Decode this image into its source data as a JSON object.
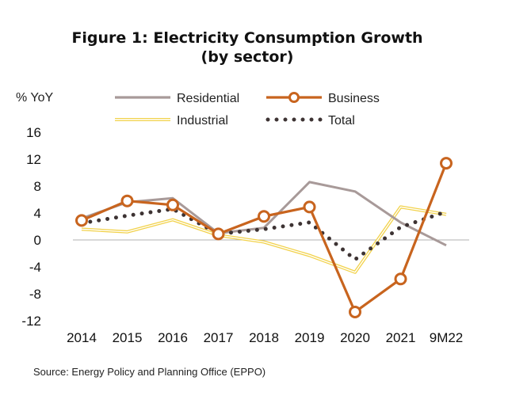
{
  "chart_data": {
    "type": "line",
    "title": "Figure 1: Electricity Consumption Growth",
    "subtitle": "(by sector)",
    "ylabel": "% YoY",
    "xlabel": "",
    "categories": [
      "2014",
      "2015",
      "2016",
      "2017",
      "2018",
      "2019",
      "2020",
      "2021",
      "9M22"
    ],
    "yticks": [
      "16",
      "12",
      "8",
      "4",
      "0",
      "-4",
      "-8",
      "-12"
    ],
    "ylim": [
      -13,
      16
    ],
    "grid": false,
    "legend_position": "top",
    "series": [
      {
        "name": "Residential",
        "color": "#a89a99",
        "style": "solid",
        "values": [
          3.2,
          5.6,
          6.2,
          1.0,
          1.8,
          8.6,
          7.2,
          2.6,
          -0.8
        ]
      },
      {
        "name": "Business",
        "color": "#c8641e",
        "style": "solid-markers",
        "values": [
          2.9,
          5.8,
          5.2,
          0.9,
          3.5,
          4.9,
          -10.7,
          -5.8,
          11.4
        ]
      },
      {
        "name": "Industrial",
        "color": "#f2d24b",
        "style": "double",
        "values": [
          1.6,
          1.2,
          3.0,
          0.7,
          -0.3,
          -2.3,
          -4.8,
          4.9,
          3.8
        ]
      },
      {
        "name": "Total",
        "color": "#3d3333",
        "style": "dotted",
        "values": [
          2.5,
          3.6,
          4.6,
          0.9,
          1.6,
          2.6,
          -2.9,
          1.9,
          4.2
        ]
      }
    ],
    "source": "Source: Energy Policy and Planning Office (EPPO)"
  }
}
